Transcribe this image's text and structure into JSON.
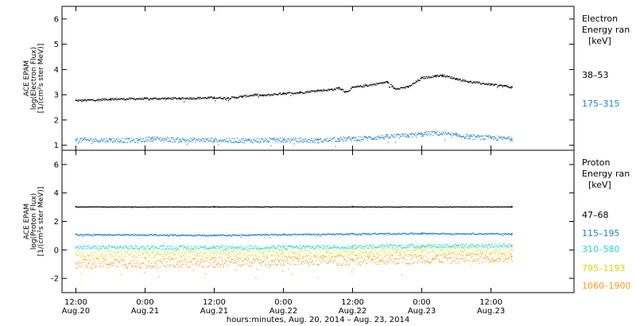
{
  "chart_data": [
    {
      "type": "scatter",
      "panel": "electron",
      "ylabel_lines": [
        "ACE EPAM",
        "log(Electron Flux)",
        "[1/(cm²s ster MeV)]"
      ],
      "ylim": [
        0.8,
        6.5
      ],
      "yticks": [
        1,
        2,
        3,
        4,
        5,
        6
      ],
      "legend_title": "Electron",
      "legend_subtitle": "Energy ran",
      "legend_unit": "[keV]",
      "series": [
        {
          "name": "38–53",
          "color": "#000000",
          "points": [
            [
              0.0,
              2.78
            ],
            [
              0.25,
              2.84
            ],
            [
              0.5,
              2.86
            ],
            [
              0.75,
              2.87
            ],
            [
              1.0,
              2.9
            ],
            [
              1.1,
              2.88
            ],
            [
              1.2,
              2.94
            ],
            [
              1.3,
              3.02
            ],
            [
              1.35,
              2.98
            ],
            [
              1.5,
              3.07
            ],
            [
              1.62,
              3.1
            ],
            [
              1.75,
              3.18
            ],
            [
              1.85,
              3.22
            ],
            [
              1.9,
              3.28
            ],
            [
              1.95,
              3.12
            ],
            [
              2.0,
              3.3
            ],
            [
              2.1,
              3.38
            ],
            [
              2.25,
              3.52
            ],
            [
              2.3,
              3.26
            ],
            [
              2.4,
              3.32
            ],
            [
              2.5,
              3.68
            ],
            [
              2.6,
              3.76
            ],
            [
              2.65,
              3.78
            ],
            [
              2.75,
              3.64
            ],
            [
              2.85,
              3.52
            ],
            [
              3.0,
              3.42
            ],
            [
              3.1,
              3.36
            ],
            [
              3.15,
              3.3
            ]
          ]
        },
        {
          "name": "175–315",
          "color": "#1a7fd4",
          "points": [
            [
              0.0,
              1.22
            ],
            [
              0.25,
              1.22
            ],
            [
              0.45,
              1.2
            ],
            [
              0.55,
              1.28
            ],
            [
              0.75,
              1.22
            ],
            [
              1.0,
              1.22
            ],
            [
              1.25,
              1.2
            ],
            [
              1.5,
              1.22
            ],
            [
              1.75,
              1.2
            ],
            [
              1.9,
              1.25
            ],
            [
              2.0,
              1.28
            ],
            [
              2.1,
              1.3
            ],
            [
              2.25,
              1.35
            ],
            [
              2.4,
              1.4
            ],
            [
              2.5,
              1.45
            ],
            [
              2.6,
              1.5
            ],
            [
              2.75,
              1.4
            ],
            [
              2.85,
              1.35
            ],
            [
              3.0,
              1.3
            ],
            [
              3.15,
              1.28
            ]
          ]
        }
      ]
    },
    {
      "type": "scatter",
      "panel": "proton",
      "ylabel_lines": [
        "ACE EPAM",
        "log(Proton Flux)",
        "[1/(cm²s ster MeV)]"
      ],
      "ylim": [
        -3.0,
        7.0
      ],
      "yticks": [
        -2,
        0,
        2,
        4,
        6
      ],
      "legend_title": "Proton",
      "legend_subtitle": "Energy ran",
      "legend_unit": "[keV]",
      "series": [
        {
          "name": "47–68",
          "color": "#000000",
          "points": [
            [
              0.0,
              3.05
            ],
            [
              1.0,
              3.05
            ],
            [
              2.0,
              3.05
            ],
            [
              3.15,
              3.05
            ]
          ]
        },
        {
          "name": "115–195",
          "color": "#1a7fd4",
          "points": [
            [
              0.0,
              1.1
            ],
            [
              1.0,
              1.05
            ],
            [
              1.5,
              1.1
            ],
            [
              2.0,
              1.15
            ],
            [
              2.5,
              1.18
            ],
            [
              3.15,
              1.15
            ]
          ]
        },
        {
          "name": "310–580",
          "color": "#20d8cc",
          "points": [
            [
              0.0,
              0.2
            ],
            [
              1.0,
              0.2
            ],
            [
              1.5,
              0.2
            ],
            [
              2.0,
              0.25
            ],
            [
              2.5,
              0.3
            ],
            [
              3.15,
              0.35
            ]
          ]
        },
        {
          "name": "795–1193",
          "color": "#e0e020",
          "points": [
            [
              0.0,
              -0.3
            ],
            [
              1.0,
              -0.25
            ],
            [
              1.5,
              -0.2
            ],
            [
              2.0,
              -0.15
            ],
            [
              2.5,
              -0.1
            ],
            [
              3.15,
              0.0
            ]
          ]
        },
        {
          "name": "1060–1900",
          "color": "#ff9a1a",
          "points": [
            [
              0.0,
              -0.95
            ],
            [
              1.0,
              -0.85
            ],
            [
              1.5,
              -0.75
            ],
            [
              2.0,
              -0.7
            ],
            [
              2.5,
              -0.6
            ],
            [
              3.15,
              -0.5
            ]
          ]
        }
      ]
    }
  ],
  "xaxis": {
    "label": "hours:minutes, Aug. 20, 2014 – Aug. 23, 2014",
    "range_days": [
      -0.1,
      3.6
    ],
    "ticks": [
      {
        "d": 0.0,
        "time": "12:00",
        "date": "Aug.20"
      },
      {
        "d": 0.5,
        "time": "0:00",
        "date": "Aug.21"
      },
      {
        "d": 1.0,
        "time": "12:00",
        "date": "Aug.21"
      },
      {
        "d": 1.5,
        "time": "0:00",
        "date": "Aug.22"
      },
      {
        "d": 2.0,
        "time": "12:00",
        "date": "Aug.22"
      },
      {
        "d": 2.5,
        "time": "0:00",
        "date": "Aug.23"
      },
      {
        "d": 3.0,
        "time": "12:00",
        "date": "Aug.23"
      }
    ]
  }
}
